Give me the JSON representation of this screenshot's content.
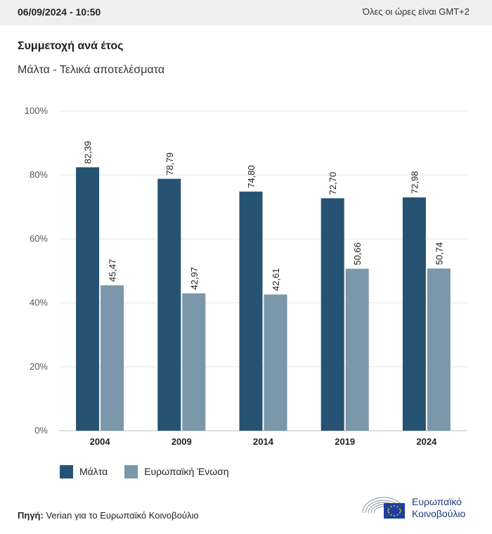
{
  "header": {
    "datetime": "06/09/2024 - 10:50",
    "timezone_note": "Όλες οι ώρες είναι GMT+2"
  },
  "title": "Συμμετοχή ανά έτος",
  "subtitle": "Μάλτα - Τελικά αποτελέσματα",
  "legend": {
    "series_1": "Μάλτα",
    "series_2": "Ευρωπαϊκή Ένωση"
  },
  "source": {
    "label": "Πηγή:",
    "text": "Verian για το Ευρωπαϊκό Κοινοβούλιο"
  },
  "logo": {
    "line1": "Ευρωπαϊκό",
    "line2": "Κοινοβούλιο"
  },
  "colors": {
    "malta": "#265373",
    "eu": "#7b97aa",
    "grid": "#e4e4e4"
  },
  "chart_data": {
    "type": "bar",
    "categories": [
      "2004",
      "2009",
      "2014",
      "2019",
      "2024"
    ],
    "series": [
      {
        "name": "Μάλτα",
        "values": [
          82.39,
          78.79,
          74.8,
          72.7,
          72.98
        ],
        "labels": [
          "82,39",
          "78,79",
          "74,80",
          "72,70",
          "72,98"
        ]
      },
      {
        "name": "Ευρωπαϊκή Ένωση",
        "values": [
          45.47,
          42.97,
          42.61,
          50.66,
          50.74
        ],
        "labels": [
          "45,47",
          "42,97",
          "42,61",
          "50,66",
          "50,74"
        ]
      }
    ],
    "ylim": [
      0,
      100
    ],
    "yticks": [
      0,
      20,
      40,
      60,
      80,
      100
    ],
    "ytick_labels": [
      "0%",
      "20%",
      "40%",
      "60%",
      "80%",
      "100%"
    ],
    "grid": true,
    "legend_position": "bottom-left"
  }
}
